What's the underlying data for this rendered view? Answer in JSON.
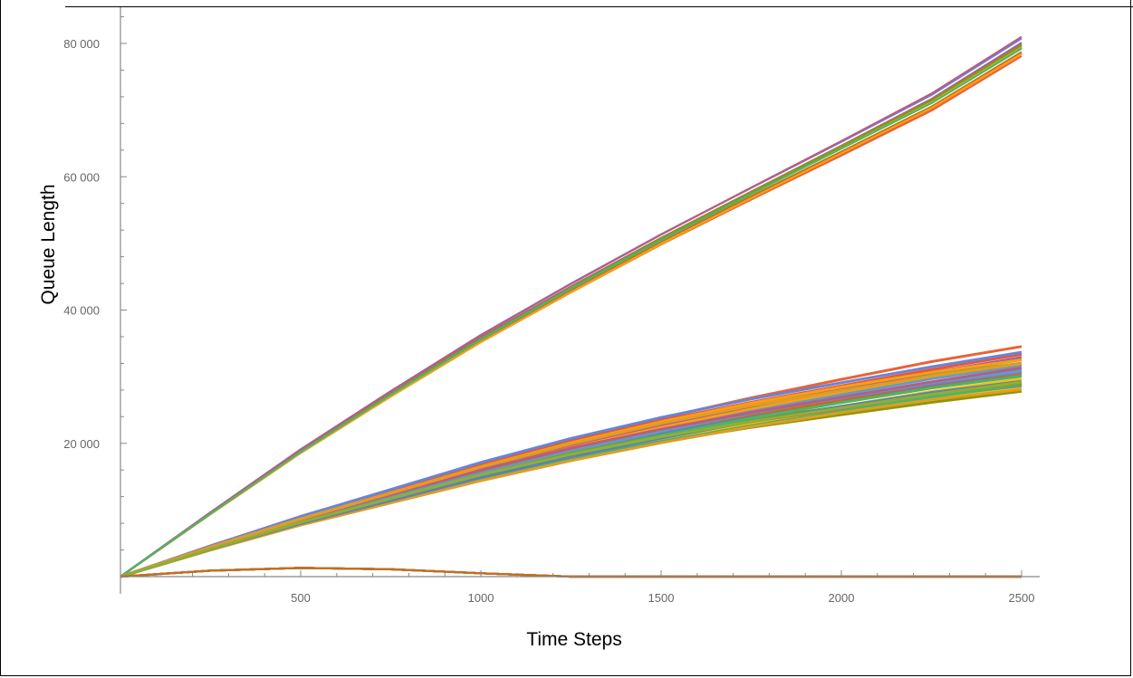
{
  "chart_data": {
    "type": "line",
    "title": "",
    "xlabel": "Time Steps",
    "ylabel": "Queue Length",
    "xlim": [
      0,
      2500
    ],
    "ylim": [
      0,
      80000
    ],
    "x_ticks": [
      500,
      1000,
      1500,
      2000,
      2500
    ],
    "y_ticks": [
      20000,
      40000,
      60000,
      80000
    ],
    "x_tick_labels": [
      "500",
      "1000",
      "1500",
      "2000",
      "2500"
    ],
    "y_tick_labels": [
      "20 000",
      "40 000",
      "60 000",
      "80 000"
    ],
    "grid": false,
    "legend": "none",
    "palette": [
      "#5e81b5",
      "#e19c24",
      "#8fb032",
      "#eb6235",
      "#8778b3",
      "#c56e1a",
      "#5d9ec7",
      "#ffbf00",
      "#a5609d",
      "#929600",
      "#e95536",
      "#6685d9",
      "#f89f13",
      "#bc5b80",
      "#47b66d"
    ],
    "groups": [
      {
        "description_series_count": 15,
        "x": [
          0,
          250,
          500,
          750,
          1000,
          1250,
          1500,
          1750,
          2000,
          2250,
          2500
        ],
        "values": [
          0,
          9500,
          18800,
          27400,
          35700,
          43300,
          50600,
          57500,
          64300,
          71200,
          79500
        ],
        "spread_at_end": 3000
      },
      {
        "description_series_count": 30,
        "x": [
          0,
          250,
          500,
          750,
          1000,
          1250,
          1500,
          1750,
          2000,
          2250,
          2500
        ],
        "values": [
          0,
          4300,
          8400,
          12100,
          15800,
          19100,
          22000,
          24600,
          26900,
          29100,
          31000
        ],
        "spread_at_end": 7000
      },
      {
        "description_series_count": 15,
        "x": [
          0,
          250,
          500,
          750,
          1000,
          1250,
          1500,
          2000,
          2500
        ],
        "values": [
          0,
          900,
          1300,
          1100,
          500,
          0,
          0,
          0,
          0
        ],
        "spread_at_end": 0
      }
    ]
  }
}
